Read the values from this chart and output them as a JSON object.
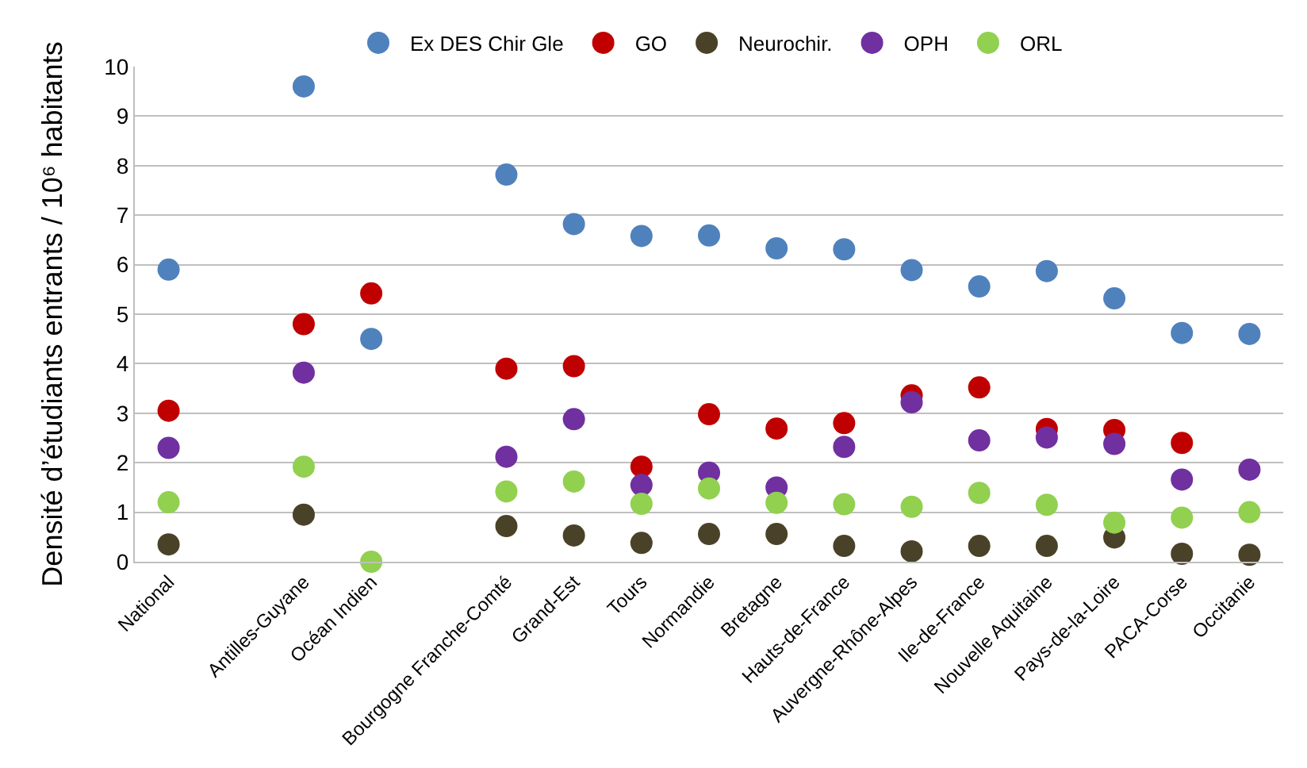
{
  "chart_data": {
    "type": "scatter",
    "ylabel": "Densité d’étudiants entrants / 10⁶ habitants",
    "categories": [
      "National",
      null,
      "Antilles-Guyane",
      "Océan Indien",
      null,
      "Bourgogne Franche-Comté",
      "Grand-Est",
      "Tours",
      "Normandie",
      "Bretagne",
      "Hauts-de-France",
      "Auvergne-Rhône-Alpes",
      "Ile-de-France",
      "Nouvelle Aquitaine",
      "Pays-de-la-Loire",
      "PACA-Corse",
      "Occitanie"
    ],
    "series": [
      {
        "name": "Ex DES Chir Gle",
        "color": "#4f81bd",
        "values": [
          5.9,
          null,
          9.6,
          4.5,
          null,
          7.82,
          6.82,
          6.58,
          6.59,
          6.33,
          6.31,
          5.89,
          5.56,
          5.87,
          5.32,
          4.62,
          4.6
        ]
      },
      {
        "name": "GO",
        "color": "#c00000",
        "values": [
          3.05,
          null,
          4.8,
          5.42,
          null,
          3.9,
          3.95,
          1.92,
          2.98,
          2.69,
          2.8,
          3.36,
          3.52,
          2.68,
          2.66,
          2.4,
          null
        ]
      },
      {
        "name": "Neurochir.",
        "color": "#4a4228",
        "values": [
          0.35,
          null,
          0.95,
          null,
          null,
          0.72,
          0.53,
          0.38,
          0.56,
          0.56,
          0.32,
          0.21,
          0.32,
          0.32,
          0.49,
          0.16,
          0.14
        ]
      },
      {
        "name": "OPH",
        "color": "#7030a0",
        "values": [
          2.3,
          null,
          3.82,
          null,
          null,
          2.12,
          2.88,
          1.55,
          1.8,
          1.5,
          2.32,
          3.22,
          2.45,
          2.51,
          2.38,
          1.66,
          1.86
        ]
      },
      {
        "name": "ORL",
        "color": "#92d050",
        "values": [
          1.2,
          null,
          1.92,
          0,
          null,
          1.42,
          1.62,
          1.17,
          1.48,
          1.19,
          1.16,
          1.11,
          1.39,
          1.15,
          0.79,
          0.89,
          1.0
        ]
      }
    ],
    "ylim": [
      0,
      10
    ],
    "yticks": [
      0,
      1,
      2,
      3,
      4,
      5,
      6,
      7,
      8,
      9,
      10
    ],
    "grid": "y",
    "legend": "top",
    "marker": "circle"
  }
}
